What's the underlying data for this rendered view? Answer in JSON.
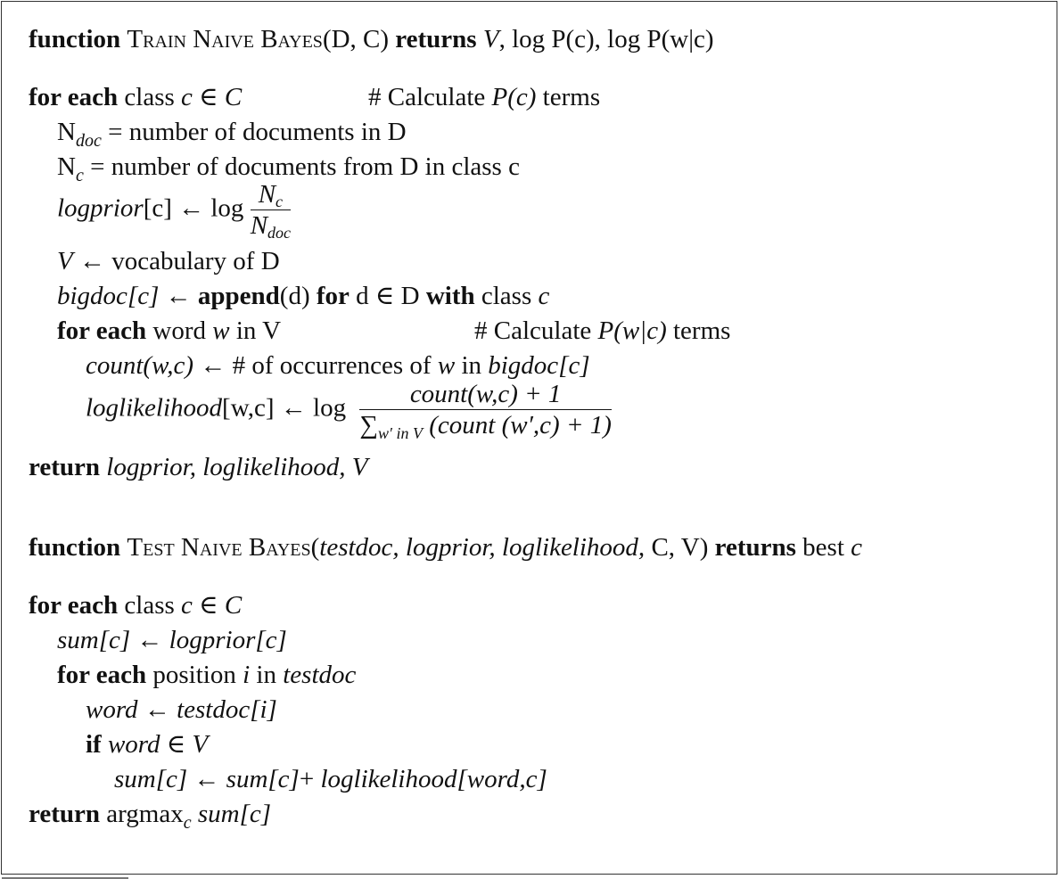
{
  "train": {
    "header": {
      "kw_function": "function",
      "name": "Train Naive Bayes",
      "args": "(D, C)",
      "kw_returns": "returns",
      "returns_v": "V",
      "returns_rest": ",  log P(c), log P(w|c)"
    },
    "for_class": {
      "kw": "for each",
      "text": "class",
      "var": "c ∈ C",
      "comment_pre": "# Calculate ",
      "comment_math": "P(c)",
      "comment_post": " terms"
    },
    "ndoc": {
      "base": "N",
      "sub": "doc",
      "text": " = number of documents in D"
    },
    "nc": {
      "base": "N",
      "sub": "c",
      "text": " = number of documents from D in class c"
    },
    "logprior": {
      "name": "logprior",
      "text": "[c] ← log",
      "num_base": "N",
      "num_sub": "c",
      "den_base": "N",
      "den_sub": "doc"
    },
    "vocab": {
      "var": "V",
      "text": " ← vocabulary of D"
    },
    "bigdoc": {
      "name": "bigdoc",
      "index": "[c]",
      "arrow": " ← ",
      "kw_append": "append",
      "arg": "(d) ",
      "kw_for": "for",
      "set": " d ∈ D ",
      "kw_with": "with",
      "text": " class ",
      "var": "c"
    },
    "for_word": {
      "kw": "for each",
      "text": " word ",
      "var": "w",
      "text2": " in V",
      "comment_pre": "#   Calculate ",
      "comment_math": "P(w|c)",
      "comment_post": " terms"
    },
    "count": {
      "name": "count(w,c)",
      "text": " ← # of occurrences of ",
      "var": "w",
      "text2": " in ",
      "name2": "bigdoc",
      "index": "[c]"
    },
    "loglik": {
      "name": "loglikelihood",
      "text": "[w,c] ←  log",
      "numerator": "count(w,c)  +  1",
      "den_sum": "∑",
      "den_sub": "w′ in V",
      "den_text": "(count (w′,c)  +  1)"
    },
    "return": {
      "kw": "return",
      "vals": "logprior, loglikelihood, V"
    }
  },
  "test": {
    "header": {
      "kw_function": "function",
      "name": "Test Naive Bayes",
      "args_open": "(",
      "args_italic": "testdoc, logprior, loglikelihood,",
      "args_plain": " C, V)",
      "kw_returns": "returns",
      "returns_text": " best ",
      "returns_var": "c"
    },
    "for_class": {
      "kw": "for each",
      "text": " class ",
      "var": "c ∈ C"
    },
    "sum_init": {
      "lhs": "sum[c]",
      "arrow": " ←  ",
      "rhs": "logprior[c]"
    },
    "for_pos": {
      "kw": "for each",
      "text": " position ",
      "var": "i",
      "text2": " in ",
      "var2": "testdoc"
    },
    "word_assign": {
      "lhs": "word",
      "arrow": " ← ",
      "rhs": "testdoc[i]"
    },
    "if_line": {
      "kw": "if",
      "cond": " word ∈ V"
    },
    "sum_update": {
      "lhs": "sum[c]",
      "arrow": " ← ",
      "rhs1": "sum[c]",
      "plus": "+ ",
      "rhs2": "loglikelihood[word,c]"
    },
    "return": {
      "kw": "return",
      "text": " argmax",
      "sub": "c",
      "vals": " sum[c]"
    }
  }
}
